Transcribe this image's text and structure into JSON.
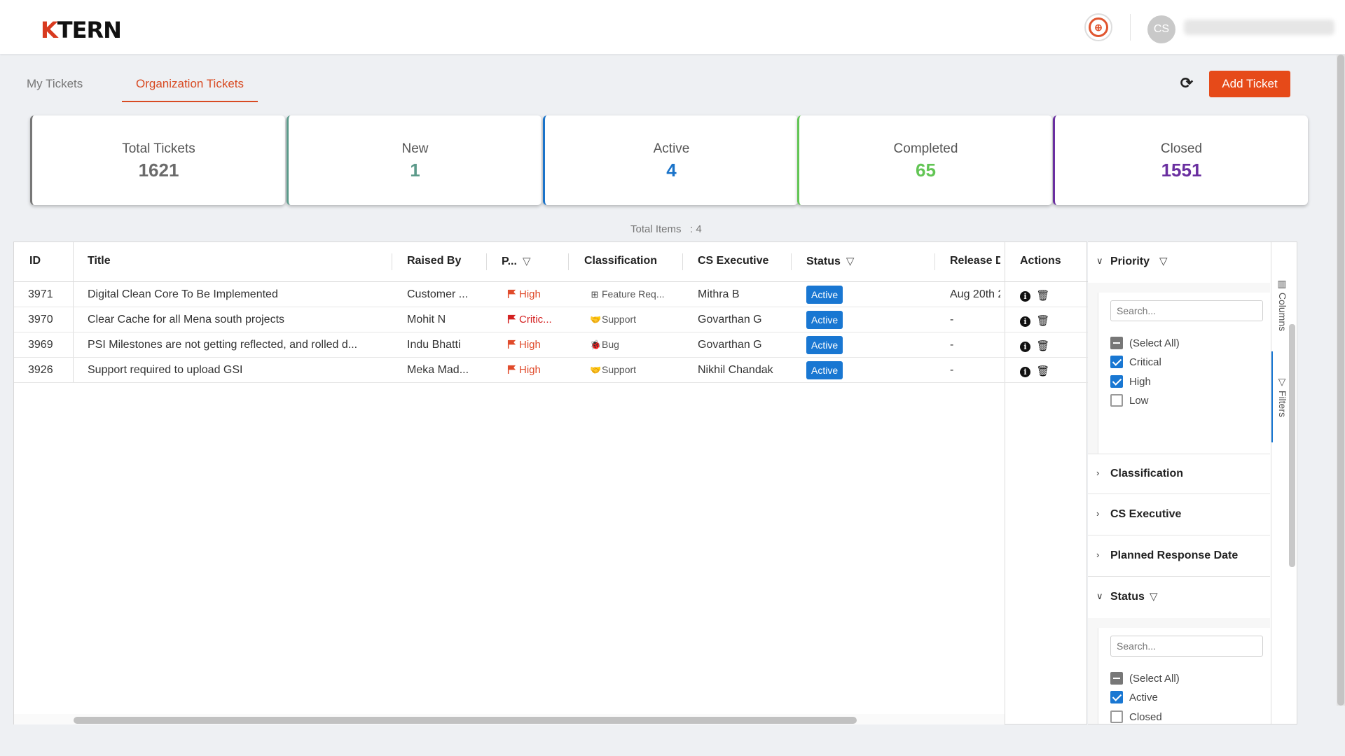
{
  "header": {
    "logo_k": "K",
    "logo_rest": "TERN",
    "avatar_initials": "CS"
  },
  "tabs": {
    "my": "My Tickets",
    "org": "Organization Tickets"
  },
  "toolbar": {
    "add_label": "Add Ticket",
    "refresh_icon": "refresh-icon"
  },
  "stats": [
    {
      "label": "Total Tickets",
      "value": "1621",
      "color": "#6b6b6b"
    },
    {
      "label": "New",
      "value": "1",
      "color": "#5c9a8a"
    },
    {
      "label": "Active",
      "value": "4",
      "color": "#1a73c9"
    },
    {
      "label": "Completed",
      "value": "65",
      "color": "#62c554"
    },
    {
      "label": "Closed",
      "value": "1551",
      "color": "#6a2fa0"
    }
  ],
  "total_items": {
    "label": "Total Items",
    "value": ": 4"
  },
  "table": {
    "columns": {
      "id": "ID",
      "title": "Title",
      "raised_by": "Raised By",
      "priority": "P...",
      "classification": "Classification",
      "cs_executive": "CS Executive",
      "status": "Status",
      "release": "Release Da",
      "actions": "Actions"
    },
    "rows": [
      {
        "id": "3971",
        "title": "Digital Clean Core To Be Implemented",
        "raised_by": "Customer ...",
        "priority": "High",
        "classification": "Feature Req...",
        "cls_icon": "plus-square-icon",
        "cs_executive": "Mithra B",
        "status": "Active",
        "release": "Aug 20th 2"
      },
      {
        "id": "3970",
        "title": "Clear Cache for all Mena south projects",
        "raised_by": "Mohit N",
        "priority": "Critic...",
        "classification": "Support",
        "cls_icon": "handshake-icon",
        "cs_executive": "Govarthan G",
        "status": "Active",
        "release": "-"
      },
      {
        "id": "3969",
        "title": "PSI Milestones are not getting reflected, and rolled d...",
        "raised_by": "Indu Bhatti",
        "priority": "High",
        "classification": "Bug",
        "cls_icon": "bug-icon",
        "cs_executive": "Govarthan G",
        "status": "Active",
        "release": "-"
      },
      {
        "id": "3926",
        "title": "Support required to upload GSI",
        "raised_by": "Meka Mad...",
        "priority": "High",
        "classification": "Support",
        "cls_icon": "handshake-icon",
        "cs_executive": "Nikhil Chandak",
        "status": "Active",
        "release": "-"
      }
    ]
  },
  "filters": {
    "priority": {
      "title": "Priority",
      "search_placeholder": "Search...",
      "options": [
        {
          "label": "(Select All)",
          "state": "indeterminate"
        },
        {
          "label": "Critical",
          "state": "checked"
        },
        {
          "label": "High",
          "state": "checked"
        },
        {
          "label": "Low",
          "state": "unchecked"
        }
      ]
    },
    "classification": {
      "title": "Classification"
    },
    "cs_executive": {
      "title": "CS Executive"
    },
    "planned_response": {
      "title": "Planned Response Date"
    },
    "status": {
      "title": "Status",
      "search_placeholder": "Search...",
      "options": [
        {
          "label": "(Select All)",
          "state": "indeterminate"
        },
        {
          "label": "Active",
          "state": "checked"
        },
        {
          "label": "Closed",
          "state": "unchecked"
        }
      ]
    }
  },
  "side_rail": {
    "columns": "Columns",
    "filters": "Filters"
  },
  "colors": {
    "accent": "#e64a19",
    "status_active": "#1977d2",
    "priority": "#e04a2a"
  }
}
